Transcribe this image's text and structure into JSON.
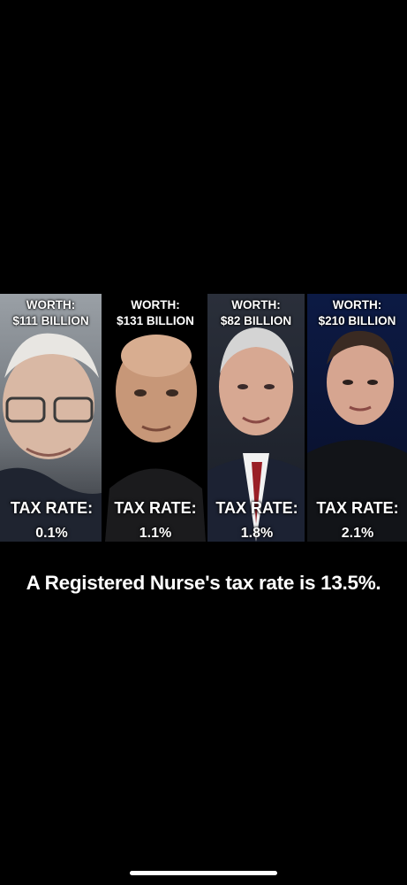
{
  "people": [
    {
      "worth_label": "WORTH:",
      "worth_value": "$111 BILLION",
      "tax_label": "TAX RATE:",
      "tax_rate": "0.1%"
    },
    {
      "worth_label": "WORTH:",
      "worth_value": "$131 BILLION",
      "tax_label": "TAX RATE:",
      "tax_rate": "1.1%"
    },
    {
      "worth_label": "WORTH:",
      "worth_value": "$82 BILLION",
      "tax_label": "TAX RATE:",
      "tax_rate": "1.8%"
    },
    {
      "worth_label": "WORTH:",
      "worth_value": "$210 BILLION",
      "tax_label": "TAX RATE:",
      "tax_rate": "2.1%"
    }
  ],
  "headline": "A Registered Nurse's tax rate is 13.5%.",
  "colors": {
    "background": "#000000",
    "text": "#ffffff"
  }
}
